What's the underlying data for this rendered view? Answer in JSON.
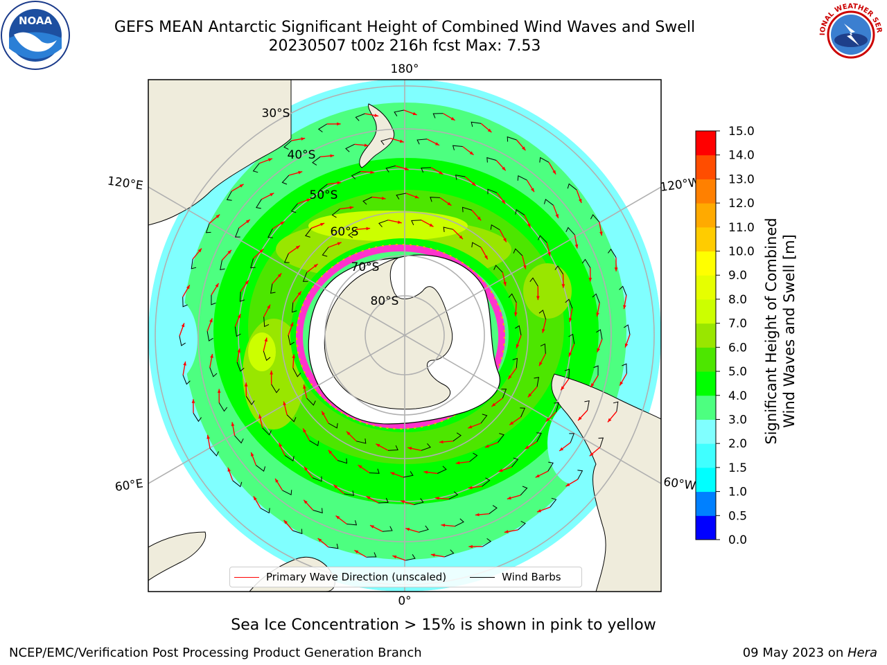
{
  "header": {
    "title_line1": "GEFS MEAN Antarctic Significant Height of Combined Wind Waves and Swell",
    "title_line2": "20230507 t00z 216h fcst   Max: 7.53"
  },
  "logos": {
    "left": "NOAA",
    "right": "NATIONAL WEATHER SERVICE"
  },
  "map": {
    "projection": "south-polar-stereographic",
    "longitude_labels": [
      "180°",
      "120°E",
      "120°W",
      "60°E",
      "60°W",
      "0°"
    ],
    "latitude_labels": [
      "30°S",
      "40°S",
      "50°S",
      "60°S",
      "70°S",
      "80°S"
    ],
    "land_color": "#efecdc",
    "ice_color": "#ff33cc",
    "arrow_color": "#ff0000",
    "barb_color": "#000000"
  },
  "colorbar": {
    "label_line1": "Significant Height of Combined",
    "label_line2": "Wind Waves and Swell [m]",
    "ticks": [
      "0.0",
      "0.5",
      "1.0",
      "1.5",
      "2.0",
      "3.0",
      "4.0",
      "5.0",
      "6.0",
      "7.0",
      "8.0",
      "9.0",
      "10.0",
      "11.0",
      "12.0",
      "13.0",
      "14.0",
      "15.0"
    ],
    "colors": [
      "#0000ff",
      "#0080ff",
      "#00ffff",
      "#40ffff",
      "#80ffff",
      "#4dff80",
      "#00ff00",
      "#4de600",
      "#99e600",
      "#ccff00",
      "#e6ff00",
      "#ffff00",
      "#ffcc00",
      "#ffaa00",
      "#ff8000",
      "#ff4d00",
      "#ff0000"
    ]
  },
  "legend": {
    "wave_label": "Primary Wave Direction (unscaled)",
    "wind_label": "Wind Barbs"
  },
  "subtitle": "Sea Ice Concentration > 15% is shown in pink to yellow",
  "footer": {
    "left": "NCEP/EMC/Verification Post Processing Product Generation Branch",
    "date": "09 May 2023 on ",
    "machine": "Hera"
  }
}
